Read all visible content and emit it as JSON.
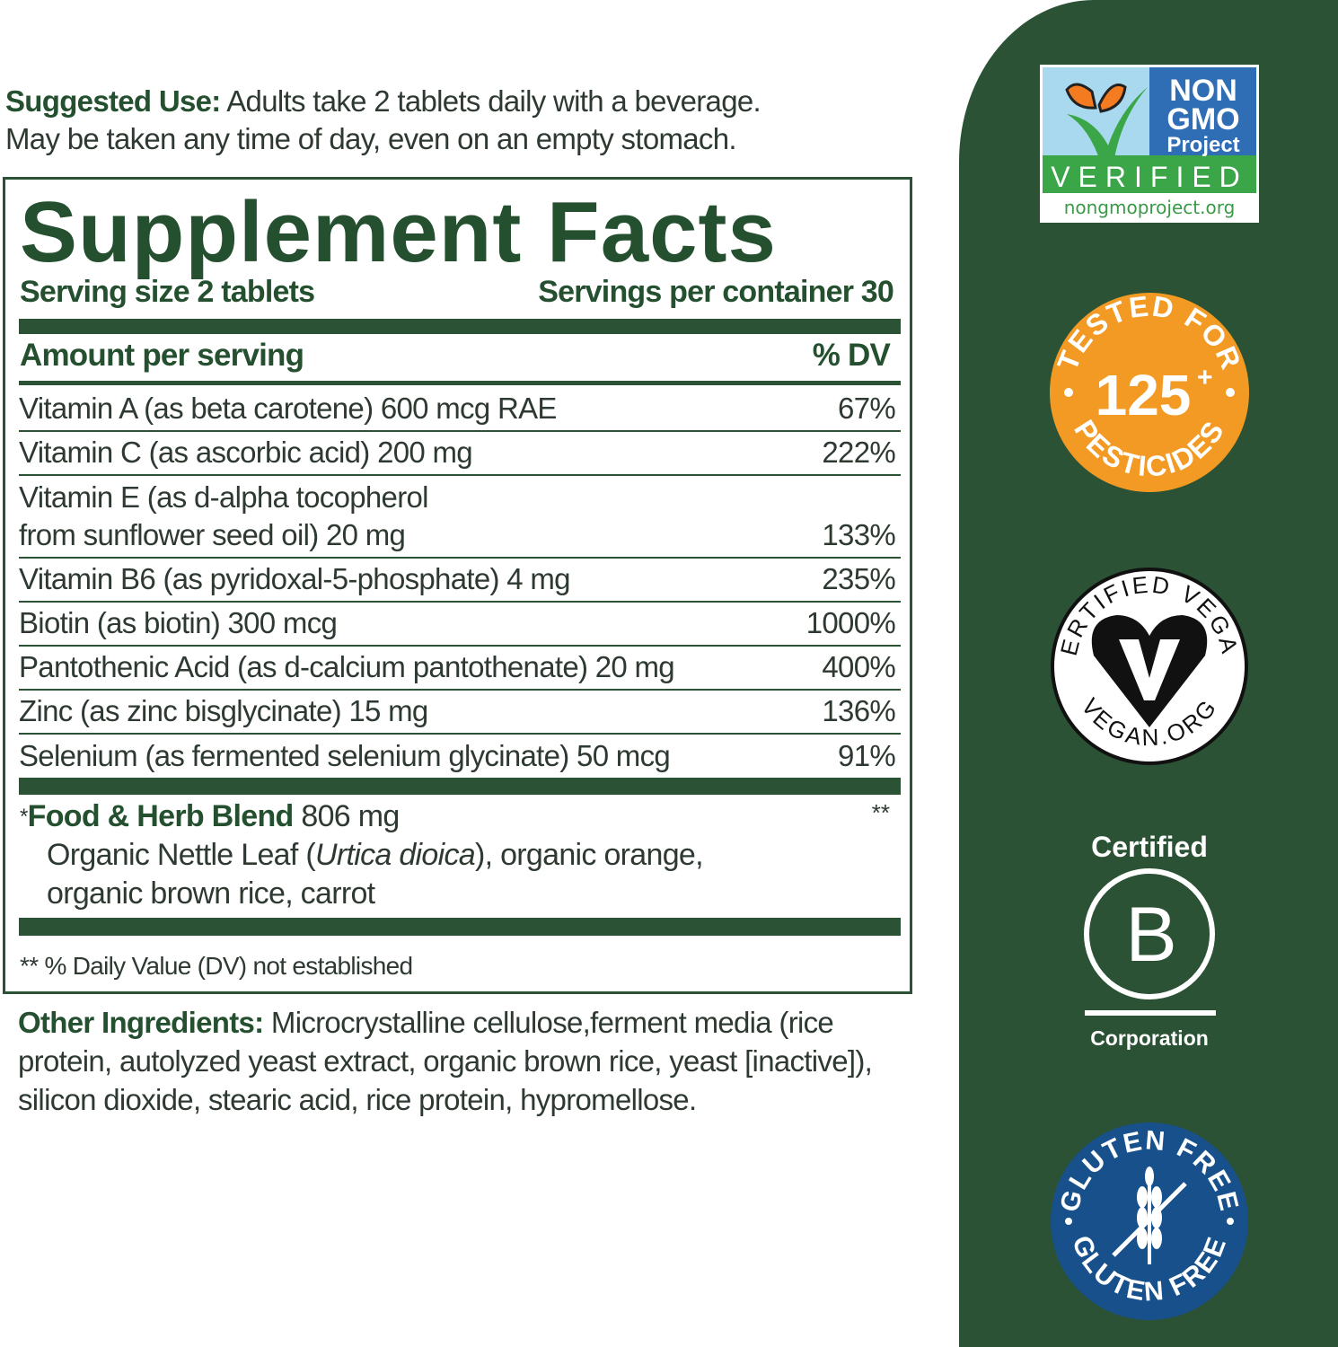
{
  "suggested_use": {
    "label": "Suggested Use:",
    "line1": "Adults take 2 tablets daily with a beverage.",
    "line2": "May be taken any time of day, even on an empty stomach."
  },
  "facts": {
    "title": "Supplement Facts",
    "serving_size": "Serving size 2 tablets",
    "servings_per_container": "Servings per container 30",
    "amount_header": "Amount per serving",
    "dv_header": "% DV",
    "rows": [
      {
        "name": "Vitamin A (as beta carotene) 600 mcg RAE",
        "dv": "67%"
      },
      {
        "name": "Vitamin C (as ascorbic acid) 200 mg",
        "dv": "222%"
      },
      {
        "name": "Vitamin E (as d-alpha tocopherol",
        "name2": "from sunflower seed oil) 20 mg",
        "dv": "133%"
      },
      {
        "name": "Vitamin B6 (as pyridoxal-5-phosphate) 4 mg",
        "dv": "235%"
      },
      {
        "name": "Biotin (as biotin) 300 mcg",
        "dv": "1000%"
      },
      {
        "name": "Pantothenic Acid (as d-calcium pantothenate) 20 mg",
        "dv": "400%"
      },
      {
        "name": "Zinc (as zinc bisglycinate) 15 mg",
        "dv": "136%"
      },
      {
        "name": "Selenium (as fermented selenium glycinate) 50 mcg",
        "dv": "91%"
      }
    ],
    "blend": {
      "marker": "*",
      "name": "Food & Herb Blend",
      "amount": "806 mg",
      "dv": "**",
      "ing1": "Organic Nettle Leaf (",
      "ing_italic": "Urtica dioica",
      "ing2": "), organic orange,",
      "ing3": "organic brown rice, carrot"
    },
    "footnote": "** % Daily Value (DV) not established"
  },
  "other_ingredients": {
    "label": "Other Ingredients:",
    "text": "Microcrystalline cellulose,ferment media (rice protein, autolyzed yeast extract, organic brown rice, yeast [inactive]), silicon dioxide, stearic acid, rice protein, hypromellose."
  },
  "badges": {
    "non_gmo": {
      "l1": "NON",
      "l2": "GMO",
      "l3": "Project",
      "verified": "VERIFIED",
      "url": "nongmoproject.org"
    },
    "pesticides": {
      "top": "TESTED FOR",
      "number": "125",
      "plus": "+",
      "bottom": "PESTICIDES"
    },
    "vegan": {
      "top": "CERTIFIED VEGAN",
      "bottom": "VEGAN.ORG"
    },
    "bcorp": {
      "top": "Certified",
      "letter": "B",
      "bottom": "Corporation"
    },
    "gluten": {
      "top": "GLUTEN FREE",
      "bottom": "GLUTEN FREE"
    }
  },
  "colors": {
    "brand_green": "#2b5234",
    "orange": "#f39a24",
    "blue": "#17508a"
  }
}
